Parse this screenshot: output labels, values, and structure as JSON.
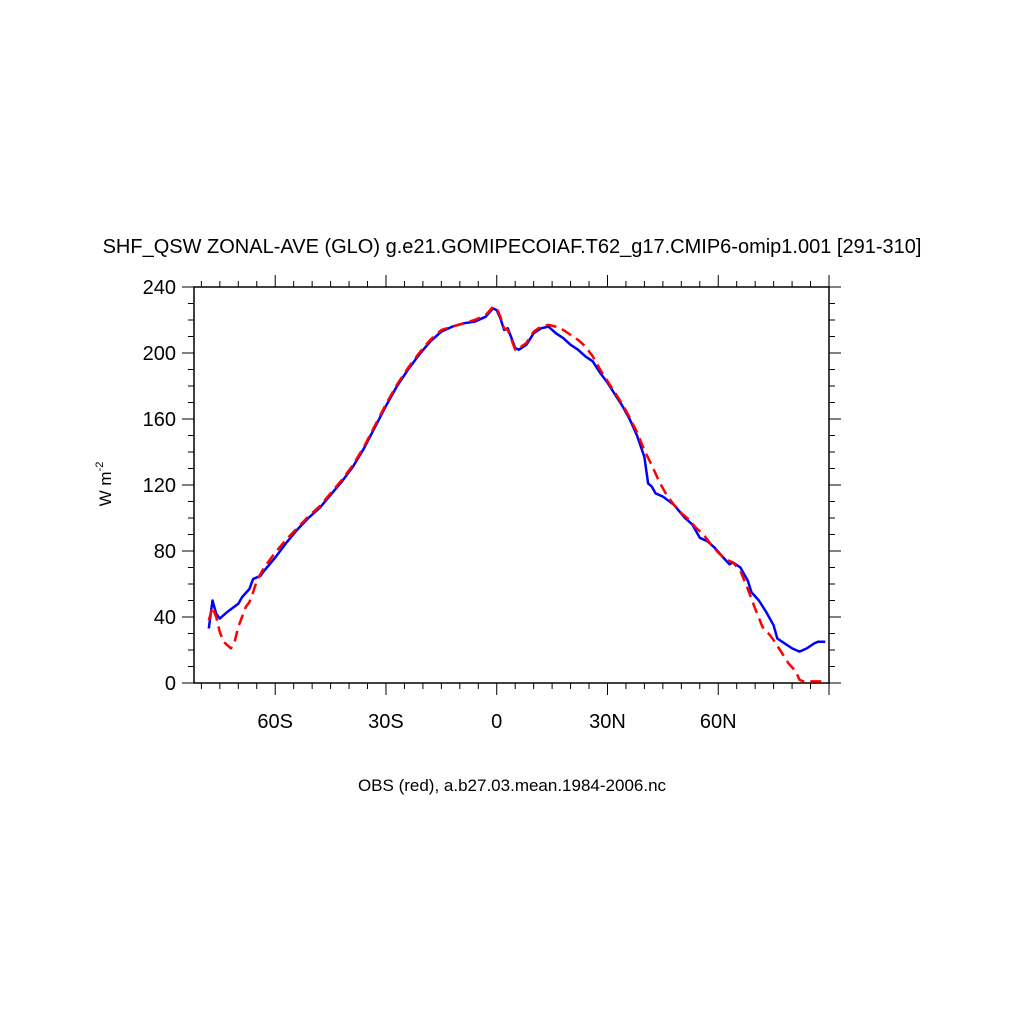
{
  "chart_data": {
    "type": "line",
    "title": "SHF_QSW ZONAL-AVE (GLO) g.e21.GOMIPECOIAF.T62_g17.CMIP6-omip1.001 [291-310]",
    "ylabel": "W m",
    "ylabel_superscript": "-2",
    "footer": "OBS (red), a.b27.03.mean.1984-2006.nc",
    "xlim": [
      -82,
      90
    ],
    "ylim": [
      0,
      240
    ],
    "x_ticks": [
      {
        "value": -60,
        "label": "60S"
      },
      {
        "value": -30,
        "label": "30S"
      },
      {
        "value": 0,
        "label": "0"
      },
      {
        "value": 30,
        "label": "30N"
      },
      {
        "value": 60,
        "label": "60N"
      }
    ],
    "y_ticks": [
      {
        "value": 0,
        "label": "0"
      },
      {
        "value": 40,
        "label": "40"
      },
      {
        "value": 80,
        "label": "80"
      },
      {
        "value": 120,
        "label": "120"
      },
      {
        "value": 160,
        "label": "160"
      },
      {
        "value": 200,
        "label": "200"
      },
      {
        "value": 240,
        "label": "240"
      }
    ],
    "series": [
      {
        "color": "#0000ff",
        "dash": "solid",
        "points": [
          [
            -78,
            33
          ],
          [
            -77,
            50
          ],
          [
            -76,
            42
          ],
          [
            -75,
            39
          ],
          [
            -73,
            43
          ],
          [
            -70,
            48
          ],
          [
            -69,
            52
          ],
          [
            -67,
            57
          ],
          [
            -66,
            63
          ],
          [
            -64,
            65
          ],
          [
            -63,
            68
          ],
          [
            -60,
            76
          ],
          [
            -57,
            85
          ],
          [
            -54,
            93
          ],
          [
            -51,
            100
          ],
          [
            -48,
            106
          ],
          [
            -45,
            114
          ],
          [
            -42,
            122
          ],
          [
            -39,
            131
          ],
          [
            -36,
            142
          ],
          [
            -33,
            155
          ],
          [
            -30,
            168
          ],
          [
            -27,
            180
          ],
          [
            -24,
            190
          ],
          [
            -21,
            199
          ],
          [
            -18,
            207
          ],
          [
            -15,
            213
          ],
          [
            -12,
            216
          ],
          [
            -9,
            218
          ],
          [
            -6,
            219
          ],
          [
            -3,
            222
          ],
          [
            -1,
            227
          ],
          [
            0,
            226
          ],
          [
            1,
            221
          ],
          [
            2,
            214
          ],
          [
            3,
            215
          ],
          [
            4,
            209
          ],
          [
            5,
            203
          ],
          [
            6,
            202
          ],
          [
            8,
            205
          ],
          [
            10,
            212
          ],
          [
            12,
            215
          ],
          [
            14,
            216
          ],
          [
            16,
            212
          ],
          [
            18,
            209
          ],
          [
            20,
            205
          ],
          [
            22,
            202
          ],
          [
            24,
            198
          ],
          [
            26,
            195
          ],
          [
            28,
            188
          ],
          [
            30,
            182
          ],
          [
            32,
            175
          ],
          [
            34,
            168
          ],
          [
            36,
            160
          ],
          [
            38,
            150
          ],
          [
            40,
            137
          ],
          [
            41,
            121
          ],
          [
            42,
            119
          ],
          [
            43,
            115
          ],
          [
            45,
            113
          ],
          [
            48,
            108
          ],
          [
            51,
            100
          ],
          [
            53,
            96
          ],
          [
            55,
            88
          ],
          [
            57,
            86
          ],
          [
            59,
            82
          ],
          [
            61,
            77
          ],
          [
            63,
            72
          ],
          [
            64,
            73
          ],
          [
            66,
            70
          ],
          [
            68,
            62
          ],
          [
            69,
            55
          ],
          [
            71,
            50
          ],
          [
            73,
            43
          ],
          [
            75,
            35
          ],
          [
            76,
            27
          ],
          [
            78,
            24
          ],
          [
            80,
            21
          ],
          [
            82,
            19
          ],
          [
            84,
            21
          ],
          [
            86,
            24
          ],
          [
            87,
            25
          ],
          [
            89,
            25
          ]
        ]
      },
      {
        "color": "#ff0000",
        "dash": "dashed",
        "points": [
          [
            -78,
            38
          ],
          [
            -77,
            46
          ],
          [
            -76,
            40
          ],
          [
            -75,
            31
          ],
          [
            -74,
            25
          ],
          [
            -73,
            23
          ],
          [
            -72,
            21
          ],
          [
            -71,
            25
          ],
          [
            -70,
            34
          ],
          [
            -69,
            40
          ],
          [
            -68,
            46
          ],
          [
            -67,
            49
          ],
          [
            -66,
            55
          ],
          [
            -65,
            62
          ],
          [
            -63,
            70
          ],
          [
            -60,
            79
          ],
          [
            -57,
            87
          ],
          [
            -54,
            94
          ],
          [
            -51,
            101
          ],
          [
            -48,
            107
          ],
          [
            -45,
            115
          ],
          [
            -42,
            123
          ],
          [
            -39,
            132
          ],
          [
            -36,
            143
          ],
          [
            -33,
            156
          ],
          [
            -30,
            169
          ],
          [
            -27,
            181
          ],
          [
            -24,
            191
          ],
          [
            -21,
            200
          ],
          [
            -18,
            208
          ],
          [
            -15,
            214
          ],
          [
            -12,
            216
          ],
          [
            -9,
            218
          ],
          [
            -6,
            220
          ],
          [
            -3,
            223
          ],
          [
            -1,
            228
          ],
          [
            0,
            227
          ],
          [
            1,
            222
          ],
          [
            2,
            215
          ],
          [
            3,
            214
          ],
          [
            4,
            208
          ],
          [
            5,
            202
          ],
          [
            6,
            203
          ],
          [
            8,
            206
          ],
          [
            10,
            213
          ],
          [
            12,
            216
          ],
          [
            14,
            217
          ],
          [
            16,
            216
          ],
          [
            18,
            214
          ],
          [
            20,
            211
          ],
          [
            22,
            208
          ],
          [
            24,
            204
          ],
          [
            26,
            198
          ],
          [
            28,
            190
          ],
          [
            30,
            183
          ],
          [
            32,
            176
          ],
          [
            34,
            169
          ],
          [
            36,
            161
          ],
          [
            38,
            152
          ],
          [
            40,
            141
          ],
          [
            42,
            132
          ],
          [
            44,
            122
          ],
          [
            46,
            114
          ],
          [
            48,
            108
          ],
          [
            50,
            103
          ],
          [
            52,
            99
          ],
          [
            54,
            94
          ],
          [
            56,
            90
          ],
          [
            58,
            84
          ],
          [
            60,
            79
          ],
          [
            62,
            75
          ],
          [
            64,
            73
          ],
          [
            66,
            68
          ],
          [
            68,
            57
          ],
          [
            70,
            45
          ],
          [
            72,
            34
          ],
          [
            74,
            29
          ],
          [
            75,
            26
          ],
          [
            77,
            19
          ],
          [
            79,
            12
          ],
          [
            81,
            7
          ],
          [
            82,
            2
          ],
          [
            83,
            1
          ],
          [
            85,
            1
          ],
          [
            87,
            1
          ],
          [
            89,
            1
          ]
        ]
      }
    ]
  }
}
